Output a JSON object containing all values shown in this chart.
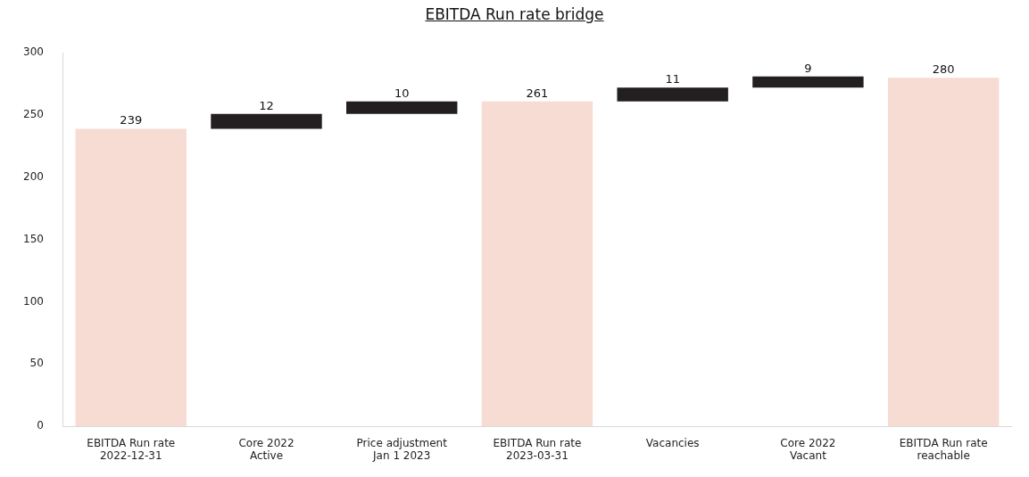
{
  "chart_data": {
    "type": "bar",
    "title": "EBITDA Run rate bridge",
    "categories": [
      "EBITDA Run rate\n2022-12-31",
      "Core 2022\nActive",
      "Price adjustment\nJan 1 2023",
      "EBITDA Run rate\n2023-03-31",
      "Vacancies",
      "Core 2022\nVacant",
      "EBITDA Run rate\nreachable"
    ],
    "values": [
      239,
      12,
      10,
      261,
      11,
      9,
      280
    ],
    "base": [
      0,
      239,
      251,
      0,
      261,
      272,
      0
    ],
    "colors": [
      "#f7dcd3",
      "#231f20",
      "#231f20",
      "#f7dcd3",
      "#231f20",
      "#231f20",
      "#f7dcd3"
    ],
    "ylim": [
      0,
      300
    ],
    "yticks": [
      0,
      50,
      100,
      150,
      200,
      250,
      300
    ],
    "grid": false,
    "legend": false,
    "data_labels": true
  }
}
